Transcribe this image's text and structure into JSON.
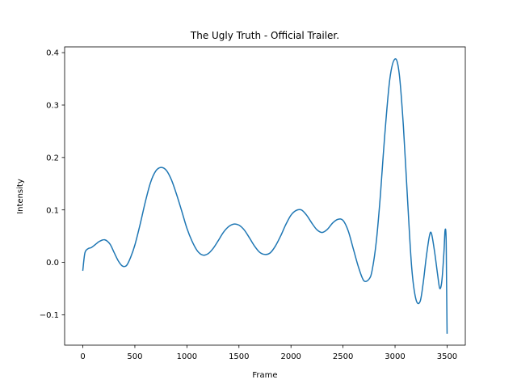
{
  "chart_data": {
    "type": "line",
    "title": "The Ugly Truth - Official Trailer.",
    "xlabel": "Frame",
    "ylabel": "Intensity",
    "xlim": [
      -175,
      3675
    ],
    "ylim": [
      -0.158,
      0.411
    ],
    "grid": false,
    "xticks": [
      0,
      500,
      1000,
      1500,
      2000,
      2500,
      3000,
      3500
    ],
    "xtick_labels": [
      "0",
      "500",
      "1000",
      "1500",
      "2000",
      "2500",
      "3000",
      "3500"
    ],
    "yticks": [
      -0.1,
      0.0,
      0.1,
      0.2,
      0.3,
      0.4
    ],
    "ytick_labels": [
      "−0.1",
      "0.0",
      "0.1",
      "0.2",
      "0.3",
      "0.4"
    ],
    "series": [
      {
        "color": "#1f77b4",
        "x": [
          0,
          20,
          50,
          80,
          120,
          160,
          210,
          260,
          300,
          340,
          380,
          420,
          460,
          500,
          550,
          600,
          650,
          700,
          750,
          800,
          850,
          900,
          950,
          1000,
          1050,
          1100,
          1150,
          1200,
          1250,
          1300,
          1350,
          1400,
          1450,
          1500,
          1550,
          1600,
          1650,
          1700,
          1750,
          1800,
          1850,
          1900,
          1950,
          2000,
          2050,
          2100,
          2150,
          2200,
          2250,
          2300,
          2350,
          2400,
          2450,
          2500,
          2550,
          2600,
          2650,
          2700,
          2750,
          2780,
          2820,
          2860,
          2900,
          2950,
          3000,
          3040,
          3080,
          3120,
          3160,
          3200,
          3240,
          3270,
          3300,
          3330,
          3350,
          3380,
          3410,
          3430,
          3450,
          3470,
          3480,
          3490,
          3495,
          3500
        ],
        "y": [
          -0.015,
          0.018,
          0.026,
          0.028,
          0.034,
          0.04,
          0.043,
          0.035,
          0.019,
          0.003,
          -0.007,
          -0.006,
          0.01,
          0.033,
          0.072,
          0.115,
          0.152,
          0.174,
          0.181,
          0.176,
          0.158,
          0.13,
          0.098,
          0.065,
          0.04,
          0.022,
          0.014,
          0.016,
          0.026,
          0.041,
          0.057,
          0.068,
          0.073,
          0.071,
          0.062,
          0.047,
          0.031,
          0.019,
          0.015,
          0.018,
          0.031,
          0.05,
          0.072,
          0.09,
          0.099,
          0.1,
          0.09,
          0.075,
          0.062,
          0.057,
          0.063,
          0.075,
          0.082,
          0.08,
          0.06,
          0.025,
          -0.01,
          -0.035,
          -0.032,
          -0.015,
          0.04,
          0.13,
          0.24,
          0.35,
          0.388,
          0.36,
          0.26,
          0.12,
          -0.01,
          -0.07,
          -0.075,
          -0.04,
          0.01,
          0.05,
          0.055,
          0.02,
          -0.025,
          -0.05,
          -0.035,
          0.02,
          0.06,
          0.05,
          -0.04,
          -0.135
        ]
      }
    ]
  }
}
